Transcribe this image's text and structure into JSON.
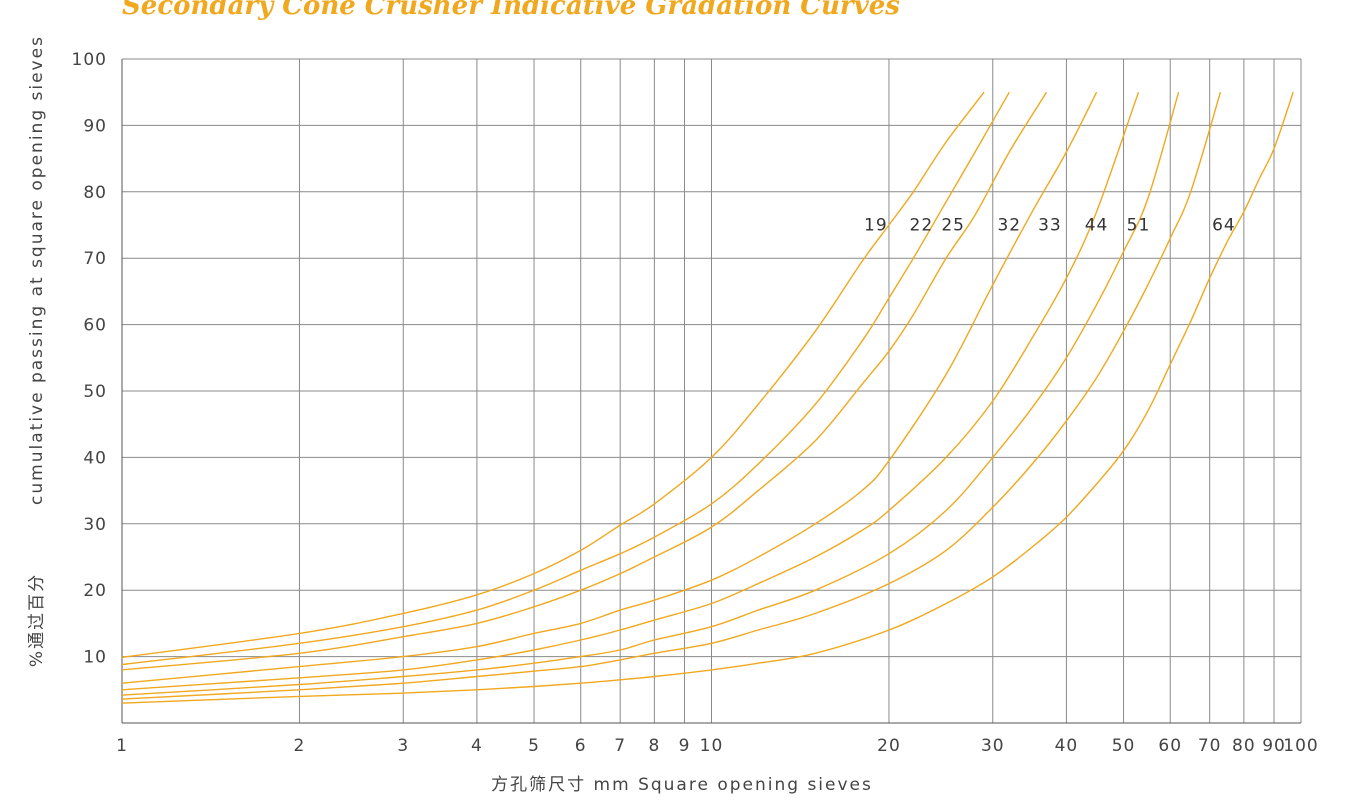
{
  "chart_data": {
    "type": "line",
    "title": "Secondary Cone Crusher Indicative Gradation Curves",
    "xlabel": "方孔筛尺寸 mm  Square opening sieves",
    "ylabel_main": "cumulative passing at square opening sieves",
    "ylabel_cn": "%通过百分",
    "x_scale": "log",
    "xlim": [
      1,
      100
    ],
    "ylim": [
      0,
      100
    ],
    "grid": true,
    "x_ticks": [
      1,
      2,
      3,
      4,
      5,
      6,
      7,
      8,
      9,
      10,
      20,
      30,
      40,
      50,
      60,
      70,
      80,
      90,
      100
    ],
    "y_ticks": [
      10,
      20,
      30,
      40,
      50,
      60,
      70,
      80,
      90,
      100
    ],
    "line_color": "#F0A81E",
    "title_color": "#F0A81E",
    "grid_color": "#8A8A8A",
    "series": [
      {
        "name": "19",
        "x": [
          1,
          2,
          3,
          4,
          5,
          6,
          7,
          8,
          10,
          12,
          15,
          18,
          20,
          22,
          25,
          29
        ],
        "y": [
          9.9,
          13.5,
          16.5,
          19.3,
          22.5,
          26.0,
          29.8,
          33.0,
          40.0,
          48.0,
          59.0,
          69.5,
          75.0,
          80.0,
          87.5,
          95.0
        ]
      },
      {
        "name": "22",
        "x": [
          1,
          2,
          3,
          4,
          5,
          6,
          7,
          8,
          10,
          12,
          15,
          18,
          20,
          22,
          25,
          28,
          32
        ],
        "y": [
          8.8,
          12.0,
          14.5,
          17.0,
          20.0,
          23.0,
          25.5,
          28.0,
          33.0,
          39.0,
          48.0,
          57.5,
          64.0,
          70.0,
          78.5,
          86.0,
          95.0
        ]
      },
      {
        "name": "25",
        "x": [
          1,
          2,
          3,
          4,
          5,
          6,
          7,
          8,
          10,
          12,
          15,
          18,
          20,
          22,
          25,
          28,
          32,
          37
        ],
        "y": [
          8.0,
          10.5,
          13.0,
          15.0,
          17.5,
          20.0,
          22.5,
          25.0,
          29.5,
          35.0,
          42.5,
          51.0,
          56.0,
          61.5,
          70.0,
          76.5,
          86.0,
          95.0
        ]
      },
      {
        "name": "32",
        "x": [
          1,
          2,
          3,
          4,
          5,
          6,
          7,
          8,
          10,
          12,
          15,
          18,
          20,
          25,
          30,
          35,
          40,
          45
        ],
        "y": [
          6.0,
          8.5,
          10.0,
          11.5,
          13.5,
          15.0,
          17.0,
          18.5,
          21.5,
          25.0,
          30.0,
          35.0,
          39.5,
          52.5,
          66.0,
          77.0,
          86.0,
          95.0
        ]
      },
      {
        "name": "33",
        "x": [
          1,
          2,
          3,
          4,
          5,
          6,
          7,
          8,
          10,
          12,
          15,
          18,
          20,
          25,
          30,
          35,
          40,
          45,
          53
        ],
        "y": [
          5.0,
          6.8,
          8.0,
          9.5,
          11.0,
          12.5,
          14.0,
          15.5,
          18.0,
          21.0,
          25.0,
          29.0,
          32.0,
          40.0,
          48.5,
          58.0,
          67.0,
          77.0,
          95.0
        ]
      },
      {
        "name": "44",
        "x": [
          1,
          2,
          3,
          4,
          5,
          6,
          7,
          8,
          10,
          12,
          15,
          20,
          25,
          30,
          35,
          40,
          45,
          50,
          55,
          62
        ],
        "y": [
          4.2,
          5.8,
          7.0,
          8.0,
          9.0,
          10.0,
          11.0,
          12.5,
          14.5,
          17.0,
          20.0,
          25.5,
          32.0,
          40.0,
          47.5,
          55.0,
          63.0,
          71.0,
          79.0,
          95.0
        ]
      },
      {
        "name": "51",
        "x": [
          1,
          2,
          3,
          4,
          5,
          6,
          7,
          8,
          10,
          12,
          15,
          20,
          25,
          30,
          35,
          40,
          45,
          50,
          55,
          60,
          65,
          73
        ],
        "y": [
          3.6,
          5.0,
          6.0,
          7.0,
          7.8,
          8.5,
          9.5,
          10.5,
          12.0,
          14.0,
          16.5,
          21.0,
          26.0,
          32.5,
          39.0,
          45.5,
          52.0,
          59.0,
          66.0,
          73.0,
          80.0,
          95.0
        ]
      },
      {
        "name": "64",
        "x": [
          1,
          2,
          3,
          4,
          5,
          6,
          7,
          8,
          10,
          12,
          15,
          20,
          25,
          30,
          35,
          40,
          45,
          50,
          55,
          60,
          65,
          70,
          75,
          80,
          85,
          90,
          97
        ],
        "y": [
          3.0,
          4.0,
          4.5,
          5.0,
          5.5,
          6.0,
          6.5,
          7.0,
          8.0,
          9.0,
          10.5,
          14.0,
          18.0,
          22.0,
          26.5,
          31.0,
          36.0,
          41.0,
          47.0,
          54.0,
          60.5,
          67.0,
          72.5,
          77.0,
          82.0,
          86.5,
          95.0
        ]
      }
    ],
    "curve_labels": [
      {
        "text": "19",
        "x": 19,
        "y": 73
      },
      {
        "text": "22",
        "x": 22.7,
        "y": 73
      },
      {
        "text": "25",
        "x": 25.7,
        "y": 73
      },
      {
        "text": "32",
        "x": 32,
        "y": 73
      },
      {
        "text": "33",
        "x": 37.5,
        "y": 73
      },
      {
        "text": "44",
        "x": 45,
        "y": 73
      },
      {
        "text": "51",
        "x": 53,
        "y": 73
      },
      {
        "text": "64",
        "x": 74,
        "y": 73
      }
    ]
  }
}
